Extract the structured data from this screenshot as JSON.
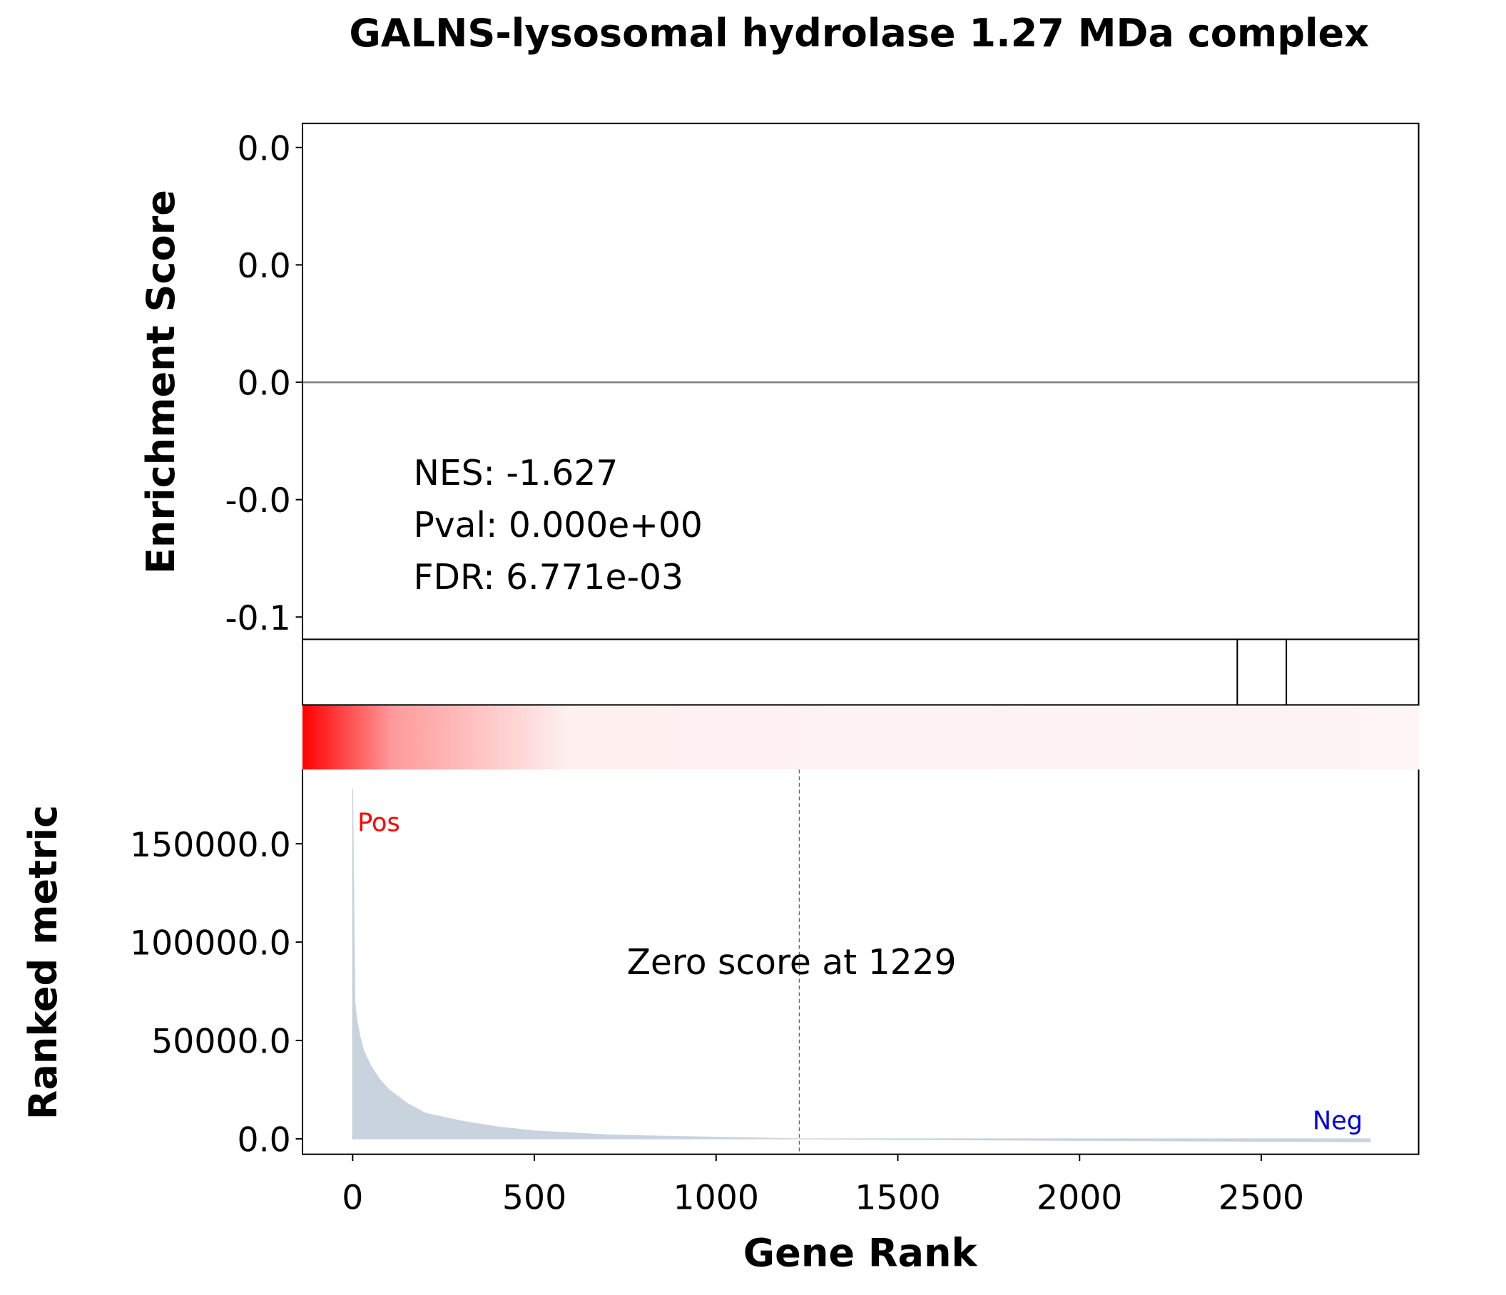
{
  "chart_data": {
    "type": "gsea",
    "title": "GALNS-lysosomal hydrolase 1.27 MDa complex",
    "es_ylabel": "Enrichment Score",
    "metric_ylabel": "Ranked metric",
    "xlabel": "Gene Rank",
    "stats": [
      "NES: -1.627",
      "Pval: 0.000e+00",
      "FDR: 6.771e-03"
    ],
    "pos_label": "Pos",
    "neg_label": "Neg",
    "zero_label": "Zero score at 1229",
    "zero_rank": 1229,
    "xlim": [
      -138,
      2933
    ],
    "xticks": [
      0,
      500,
      1000,
      1500,
      2000,
      2500
    ],
    "es_ylim": [
      -0.0438,
      0.0441
    ],
    "es_yticks": [
      {
        "value": 0.04,
        "label": "0.0"
      },
      {
        "value": 0.02,
        "label": "0.0"
      },
      {
        "value": 0,
        "label": "0.0"
      },
      {
        "value": -0.02,
        "label": "-0.0"
      },
      {
        "value": -0.04,
        "label": "-0.1"
      }
    ],
    "es_baseline": 0,
    "hits": [
      2434,
      2569
    ],
    "metric_ylim": [
      -7843,
      187745
    ],
    "metric_yticks": [
      {
        "value": 0,
        "label": "0.0"
      },
      {
        "value": 50000,
        "label": "50000.0"
      },
      {
        "value": 100000,
        "label": "100000.0"
      },
      {
        "value": 150000,
        "label": "150000.0"
      }
    ],
    "metric_color": "#c8d3dd",
    "x": [
      0,
      3,
      6,
      10,
      20,
      30,
      50,
      75,
      100,
      150,
      200,
      250,
      300,
      400,
      500,
      600,
      700,
      800,
      1000,
      1229,
      1500,
      2000,
      2500,
      2800
    ],
    "values": [
      178000,
      120000,
      70000,
      62000,
      52000,
      45000,
      37000,
      30000,
      25000,
      18000,
      13000,
      11000,
      9000,
      6000,
      4000,
      3000,
      2000,
      1500,
      800,
      0,
      -300,
      -800,
      -1200,
      -1500
    ]
  }
}
